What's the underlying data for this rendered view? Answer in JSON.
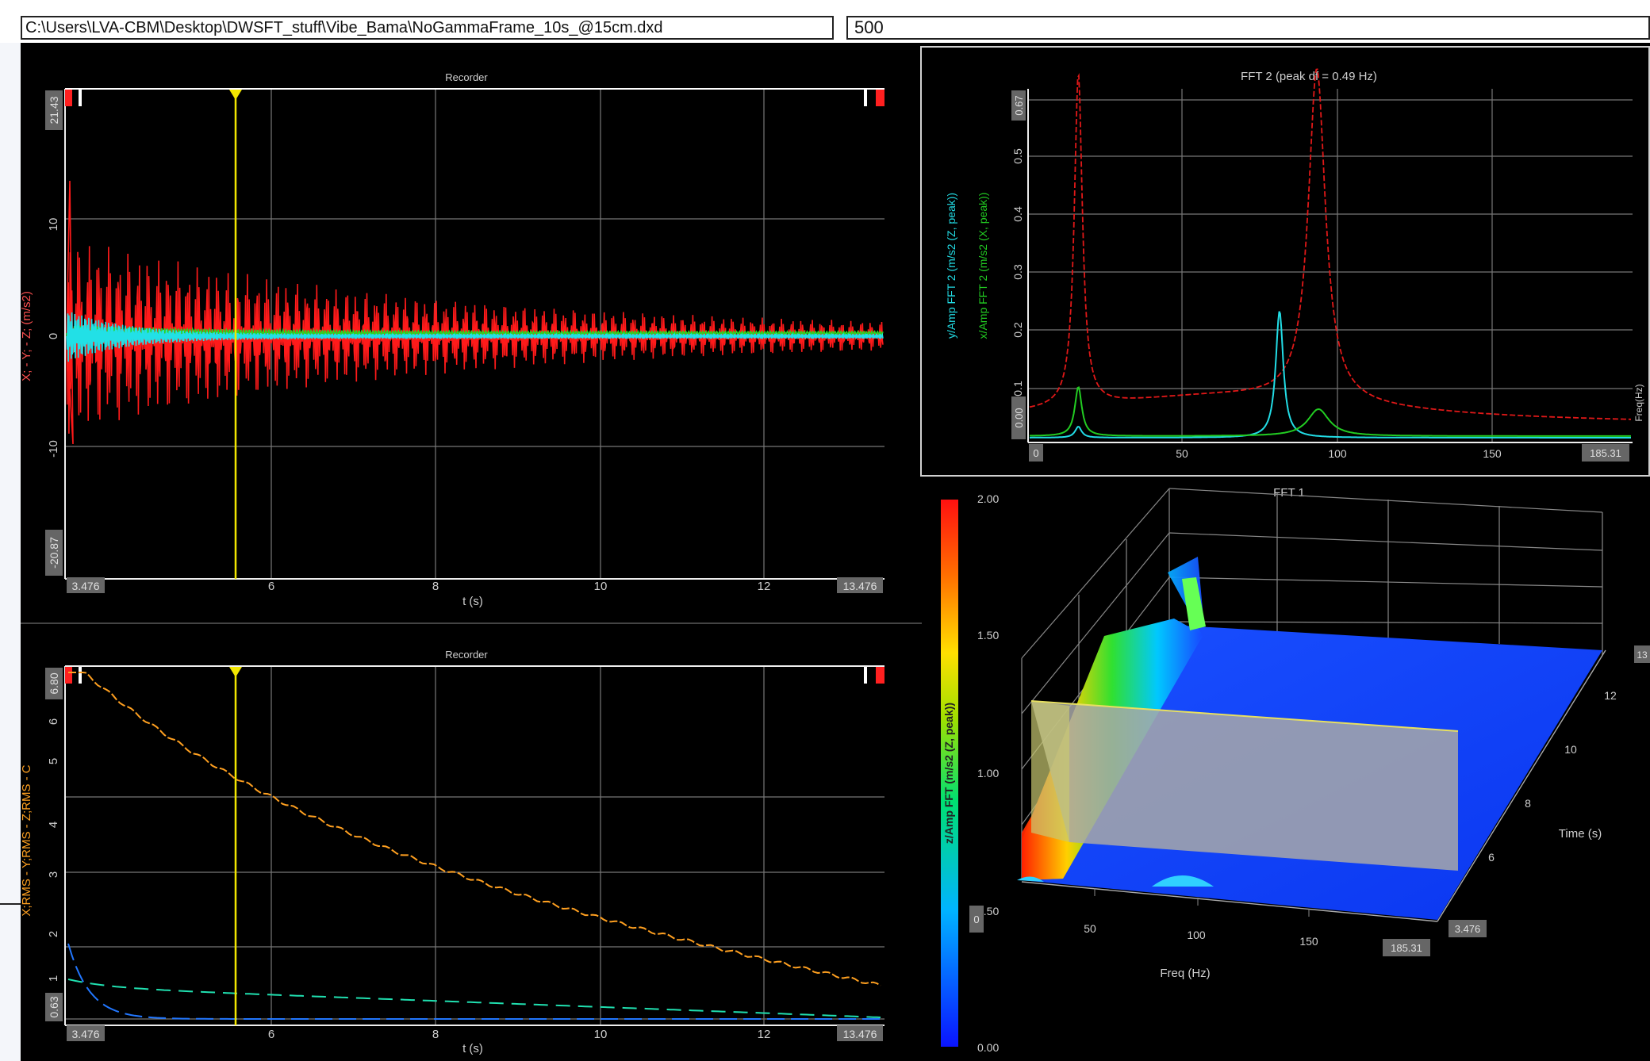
{
  "file_path": "C:\\Users\\LVA-CBM\\Desktop\\DWSFT_stuff\\Vibe_Bama\\NoGammaFrame_10s_@15cm.dxd",
  "sample_rate": "500",
  "recorder_top": {
    "title": "Recorder",
    "y_max_box": "21.43",
    "y_min_box": "-20.87",
    "y_ticks": [
      "10",
      "0",
      "-10"
    ],
    "x_start_box": "3.476",
    "x_end_box": "13.476",
    "x_ticks": [
      "6",
      "8",
      "10",
      "12"
    ],
    "x_label": "t (s)",
    "y_label": "X; - Y; - Z; (m/s2)",
    "x_range": [
      3.476,
      13.476
    ],
    "y_range": [
      -20.87,
      21.43
    ],
    "colors": {
      "x": "#22dd22",
      "y": "#22e0e6",
      "z": "#ff1a1a",
      "cursor": "#f2e600"
    }
  },
  "recorder_bottom": {
    "title": "Recorder",
    "y_max_box": "6.80",
    "y_min_box": "0.63",
    "y_ticks": [
      "6",
      "5",
      "4",
      "3",
      "2",
      "1"
    ],
    "x_start_box": "3.476",
    "x_end_box": "13.476",
    "x_ticks": [
      "6",
      "8",
      "10",
      "12"
    ],
    "x_label": "t (s)",
    "y_label": "X;RMS - Y;RMS - Z;RMS - C",
    "colors": {
      "x_rms": "#20e0b0",
      "y_rms": "#2277ff",
      "z_rms": "#ffa020",
      "cursor": "#f2e600"
    }
  },
  "fft2": {
    "title": "FFT 2 (peak df = 0.49 Hz)",
    "y_max_box": "0.67",
    "y_ticks": [
      "0.5",
      "0.4",
      "0.3",
      "0.2",
      "0.1"
    ],
    "y_min_box": "0.00",
    "x_start_box": "0",
    "x_end_box": "185.31",
    "x_ticks": [
      "50",
      "100",
      "150"
    ],
    "y_label_1": "y/Amp FFT 2 (m/s2 (Z, peak))",
    "y_label_2": "x/Amp FFT 2 (m/s2 (X, peak))",
    "right_label": "Freq(Hz)",
    "colors": {
      "z": "#e01818",
      "y": "#22dde6",
      "x": "#22cc22"
    }
  },
  "fft1": {
    "title": "FFT 1",
    "colorbar_ticks": [
      "2.00",
      "1.50",
      "1.00",
      "0.50",
      "0.00"
    ],
    "colorbar_label": "z/Amp FFT (m/s2 (Z, peak))",
    "colorbar_min_box": "0",
    "freq_ticks": [
      "50",
      "100",
      "150"
    ],
    "freq_end_box": "185.31",
    "freq_label": "Freq (Hz)",
    "time_ticks": [
      "6",
      "8",
      "10",
      "12"
    ],
    "time_start_box": "3.476",
    "time_end_box": "13",
    "time_label": "Time (s)"
  }
}
